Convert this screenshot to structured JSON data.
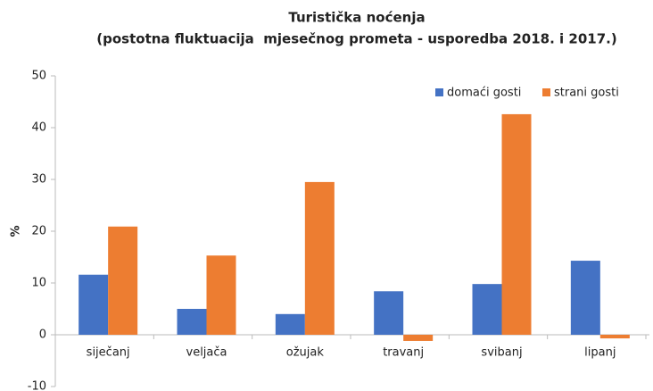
{
  "chart_data": {
    "type": "bar",
    "title": "Turistička noćenja",
    "subtitle": "(postotna fluktuacija  mjesečnog prometa - usporedba 2018. i 2017.)",
    "y_label": "%",
    "categories": [
      "siječanj",
      "veljača",
      "ožujak",
      "travanj",
      "svibanj",
      "lipanj"
    ],
    "series": [
      {
        "name": "domaći gosti",
        "color": "#4472c4",
        "values": [
          11.6,
          5.0,
          4.0,
          8.4,
          9.8,
          14.3
        ]
      },
      {
        "name": "strani gosti",
        "color": "#ed7d31",
        "values": [
          20.9,
          15.3,
          29.5,
          -1.2,
          42.6,
          -0.7
        ]
      }
    ],
    "ylim": [
      -10,
      50
    ],
    "yticks": [
      -10,
      0,
      10,
      20,
      30,
      40,
      50
    ],
    "grid": false,
    "legend": "upper right"
  }
}
